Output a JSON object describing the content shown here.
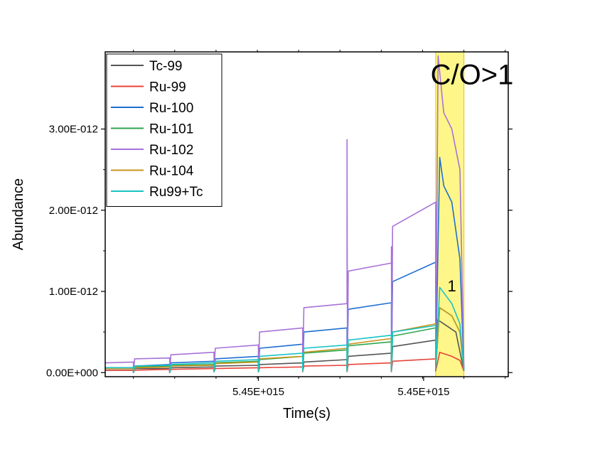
{
  "chart_data": {
    "type": "line",
    "title": "",
    "xlabel": "Time(s)",
    "ylabel": "Abundance",
    "x_tick_labels": [
      "5.45E+015",
      "5.45E+015"
    ],
    "y_tick_labels": [
      "0.00E+000",
      "1.00E-012",
      "2.00E-012",
      "3.00E-012"
    ],
    "ylim": [
      -5e-14,
      3.95e-12
    ],
    "xlim": [
      0,
      100
    ],
    "grid": false,
    "legend_position": "top-left",
    "annotations": [
      {
        "text": "C/O>1",
        "x": 91,
        "y": 3.55e-12
      },
      {
        "text": "1",
        "x": 86,
        "y": 1e-12
      }
    ],
    "highlight_region": {
      "x_start": 82,
      "x_end": 89,
      "color": "#fff68a"
    },
    "series": [
      {
        "name": "Tc-99",
        "color": "#555555",
        "points": [
          [
            0,
            3e-14
          ],
          [
            7,
            3e-14
          ],
          [
            7,
            0.0
          ],
          [
            7.3,
            5e-14
          ],
          [
            16,
            5e-14
          ],
          [
            16,
            0.0
          ],
          [
            16.3,
            6e-14
          ],
          [
            27,
            7e-14
          ],
          [
            27,
            1e-14
          ],
          [
            27.3,
            8e-14
          ],
          [
            38,
            9e-14
          ],
          [
            38,
            1e-14
          ],
          [
            38.3,
            1e-13
          ],
          [
            49,
            1.2e-13
          ],
          [
            49,
            2e-14
          ],
          [
            49.3,
            1.3e-13
          ],
          [
            60,
            1.6e-13
          ],
          [
            60,
            2e-14
          ],
          [
            60.3,
            2e-13
          ],
          [
            71,
            2.4e-13
          ],
          [
            71,
            2e-14
          ],
          [
            71.3,
            3.2e-13
          ],
          [
            82,
            4e-13
          ],
          [
            82,
            3e-14
          ],
          [
            82.5,
            6.5e-13
          ],
          [
            84,
            6e-13
          ],
          [
            87,
            5e-13
          ],
          [
            89,
            2e-14
          ]
        ]
      },
      {
        "name": "Ru-99",
        "color": "#e8433a",
        "points": [
          [
            0,
            3e-14
          ],
          [
            7,
            3e-14
          ],
          [
            7,
            0.0
          ],
          [
            7.3,
            3e-14
          ],
          [
            16,
            4e-14
          ],
          [
            16,
            0.0
          ],
          [
            16.3,
            4e-14
          ],
          [
            27,
            5e-14
          ],
          [
            27,
            1e-14
          ],
          [
            27.3,
            5e-14
          ],
          [
            38,
            6e-14
          ],
          [
            38,
            1e-14
          ],
          [
            38.3,
            6e-14
          ],
          [
            49,
            7e-14
          ],
          [
            49,
            1e-14
          ],
          [
            49.3,
            8e-14
          ],
          [
            60,
            9e-14
          ],
          [
            60,
            1e-14
          ],
          [
            60.3,
            1e-13
          ],
          [
            71,
            1.2e-13
          ],
          [
            71,
            1e-14
          ],
          [
            71.3,
            1.4e-13
          ],
          [
            82,
            1.7e-13
          ],
          [
            82,
            2e-14
          ],
          [
            83,
            2.5e-13
          ],
          [
            86,
            2e-13
          ],
          [
            88,
            1.5e-13
          ],
          [
            89,
            2e-14
          ]
        ]
      },
      {
        "name": "Ru-100",
        "color": "#1f6fd1",
        "points": [
          [
            0,
            6e-14
          ],
          [
            7,
            6e-14
          ],
          [
            7,
            0.0
          ],
          [
            7.3,
            8e-14
          ],
          [
            16,
            1e-13
          ],
          [
            16,
            0.0
          ],
          [
            16.3,
            1.2e-13
          ],
          [
            27,
            1.4e-13
          ],
          [
            27,
            1e-14
          ],
          [
            27.3,
            1.7e-13
          ],
          [
            38,
            2e-13
          ],
          [
            38,
            1e-14
          ],
          [
            38.3,
            3e-13
          ],
          [
            49,
            3.5e-13
          ],
          [
            49,
            2e-14
          ],
          [
            49.3,
            5e-13
          ],
          [
            60,
            5.5e-13
          ],
          [
            60,
            2e-14
          ],
          [
            60.3,
            7.8e-13
          ],
          [
            71,
            8.6e-13
          ],
          [
            71,
            2e-14
          ],
          [
            71.3,
            1.12e-12
          ],
          [
            82,
            1.36e-12
          ],
          [
            82,
            5e-14
          ],
          [
            83,
            2.65e-12
          ],
          [
            84,
            2.3e-12
          ],
          [
            86,
            2.1e-12
          ],
          [
            88,
            1.4e-12
          ],
          [
            89,
            5e-14
          ]
        ]
      },
      {
        "name": "Ru-101",
        "color": "#2ea64f",
        "points": [
          [
            0,
            5e-14
          ],
          [
            7,
            5e-14
          ],
          [
            7,
            0.0
          ],
          [
            7.3,
            7e-14
          ],
          [
            16,
            8e-14
          ],
          [
            16,
            0.0
          ],
          [
            16.3,
            9e-14
          ],
          [
            27,
            1e-13
          ],
          [
            27,
            1e-14
          ],
          [
            27.3,
            1.2e-13
          ],
          [
            38,
            1.4e-13
          ],
          [
            38,
            1e-14
          ],
          [
            38.3,
            1.6e-13
          ],
          [
            49,
            2e-13
          ],
          [
            49,
            2e-14
          ],
          [
            49.3,
            2.4e-13
          ],
          [
            60,
            2.8e-13
          ],
          [
            60,
            2e-14
          ],
          [
            60.3,
            3.3e-13
          ],
          [
            71,
            3.8e-13
          ],
          [
            71,
            2e-14
          ],
          [
            71.3,
            4.5e-13
          ],
          [
            82,
            5.5e-13
          ],
          [
            82,
            4e-14
          ],
          [
            83,
            8e-13
          ],
          [
            86,
            7e-13
          ],
          [
            88,
            5e-13
          ],
          [
            89,
            3e-14
          ]
        ]
      },
      {
        "name": "Ru-102",
        "color": "#a872d8",
        "points": [
          [
            0,
            1.2e-13
          ],
          [
            7,
            1.3e-13
          ],
          [
            7,
            1e-14
          ],
          [
            7.3,
            1.7e-13
          ],
          [
            16,
            1.8e-13
          ],
          [
            16,
            1e-14
          ],
          [
            16.3,
            2.2e-13
          ],
          [
            27,
            2.5e-13
          ],
          [
            27,
            2e-14
          ],
          [
            27.3,
            3e-13
          ],
          [
            38,
            3.4e-13
          ],
          [
            38,
            2e-14
          ],
          [
            38.3,
            5e-13
          ],
          [
            49,
            5.5e-13
          ],
          [
            49,
            2e-14
          ],
          [
            49.3,
            8e-13
          ],
          [
            60,
            8.5e-13
          ],
          [
            60,
            2.87e-12
          ],
          [
            60.1,
            5e-14
          ],
          [
            60.3,
            1.25e-12
          ],
          [
            71,
            1.35e-12
          ],
          [
            71,
            1.55e-12
          ],
          [
            71.1,
            5e-14
          ],
          [
            71.3,
            1.8e-12
          ],
          [
            82,
            2.1e-12
          ],
          [
            82,
            5e-14
          ],
          [
            82.6,
            3.9e-12
          ],
          [
            84,
            3.2e-12
          ],
          [
            86,
            3e-12
          ],
          [
            88,
            2.5e-12
          ],
          [
            89,
            5e-14
          ]
        ]
      },
      {
        "name": "Ru-104",
        "color": "#c8961e",
        "points": [
          [
            0,
            5e-14
          ],
          [
            7,
            5e-14
          ],
          [
            7,
            0.0
          ],
          [
            7.3,
            6e-14
          ],
          [
            16,
            7e-14
          ],
          [
            16,
            0.0
          ],
          [
            16.3,
            8e-14
          ],
          [
            27,
            9e-14
          ],
          [
            27,
            1e-14
          ],
          [
            27.3,
            1.1e-13
          ],
          [
            38,
            1.3e-13
          ],
          [
            38,
            1e-14
          ],
          [
            38.3,
            1.7e-13
          ],
          [
            49,
            2e-13
          ],
          [
            49,
            2e-14
          ],
          [
            49.3,
            2.5e-13
          ],
          [
            60,
            3e-13
          ],
          [
            60,
            2e-14
          ],
          [
            60.3,
            3.5e-13
          ],
          [
            71,
            4.2e-13
          ],
          [
            71,
            2e-14
          ],
          [
            71.3,
            5e-13
          ],
          [
            82,
            6e-13
          ],
          [
            82,
            4e-14
          ],
          [
            83,
            8e-13
          ],
          [
            86,
            7e-13
          ],
          [
            88,
            5e-13
          ],
          [
            89,
            3e-14
          ]
        ]
      },
      {
        "name": "Ru99+Tc",
        "color": "#18c4c4",
        "points": [
          [
            0,
            6e-14
          ],
          [
            7,
            6e-14
          ],
          [
            7,
            0.0
          ],
          [
            7.3,
            8e-14
          ],
          [
            16,
            9e-14
          ],
          [
            16,
            0.0
          ],
          [
            16.3,
            1e-13
          ],
          [
            27,
            1.2e-13
          ],
          [
            27,
            1e-14
          ],
          [
            27.3,
            1.4e-13
          ],
          [
            38,
            1.6e-13
          ],
          [
            38,
            1e-14
          ],
          [
            38.3,
            2e-13
          ],
          [
            49,
            2.4e-13
          ],
          [
            49,
            2e-14
          ],
          [
            49.3,
            3e-13
          ],
          [
            60,
            3.4e-13
          ],
          [
            60,
            2e-14
          ],
          [
            60.3,
            4e-13
          ],
          [
            71,
            4.6e-13
          ],
          [
            71,
            2e-14
          ],
          [
            71.3,
            5e-13
          ],
          [
            82,
            5.8e-13
          ],
          [
            82,
            5e-14
          ],
          [
            83,
            1.05e-12
          ],
          [
            86,
            8.5e-13
          ],
          [
            88,
            6e-13
          ],
          [
            89,
            3e-14
          ]
        ]
      }
    ]
  }
}
